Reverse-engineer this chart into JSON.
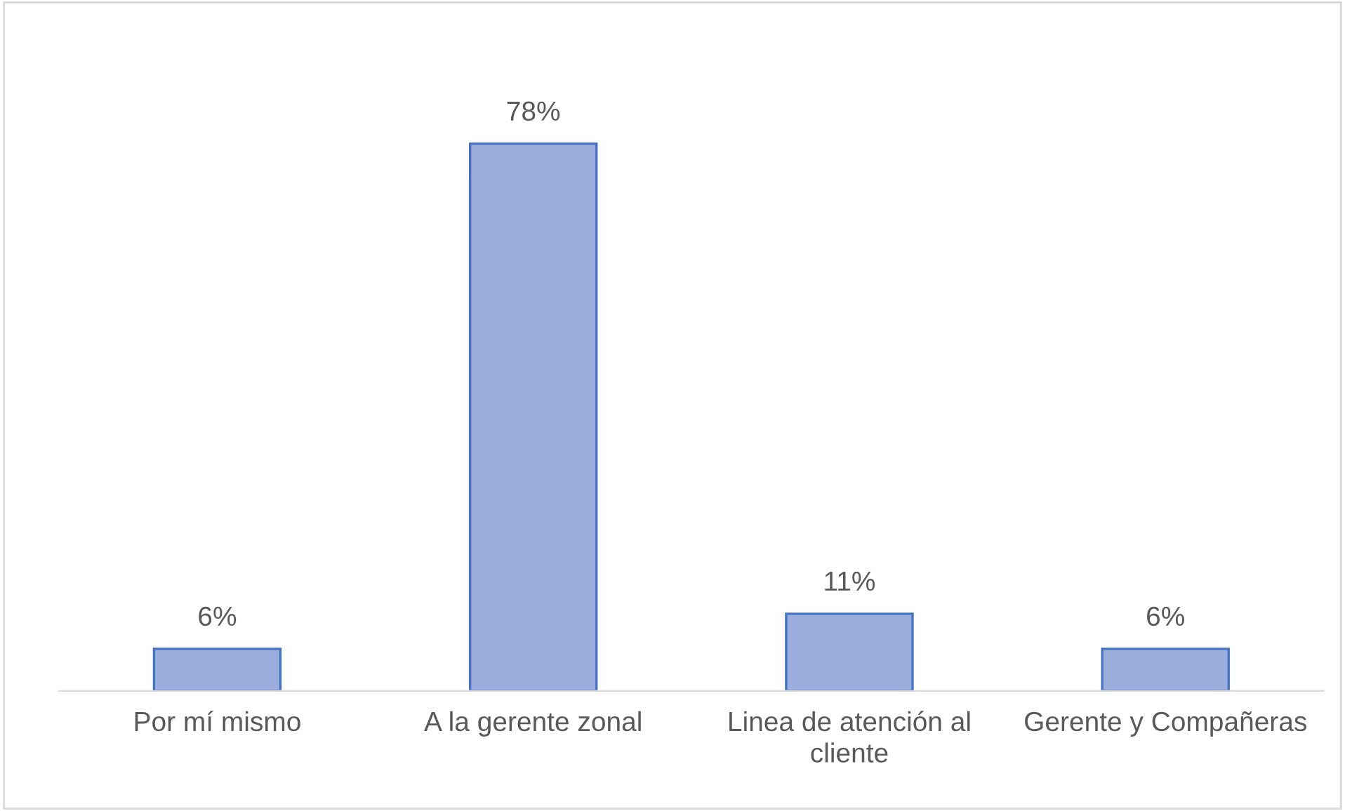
{
  "chart_data": {
    "type": "bar",
    "categories": [
      "Por mí mismo",
      "A la gerente zonal",
      "Linea de atención al cliente",
      "Gerente y Compañeras"
    ],
    "values": [
      6,
      78,
      11,
      6
    ],
    "value_labels": [
      "6%",
      "78%",
      "11%",
      "6%"
    ],
    "color": "#9caedd",
    "grid": false,
    "legend": false
  }
}
